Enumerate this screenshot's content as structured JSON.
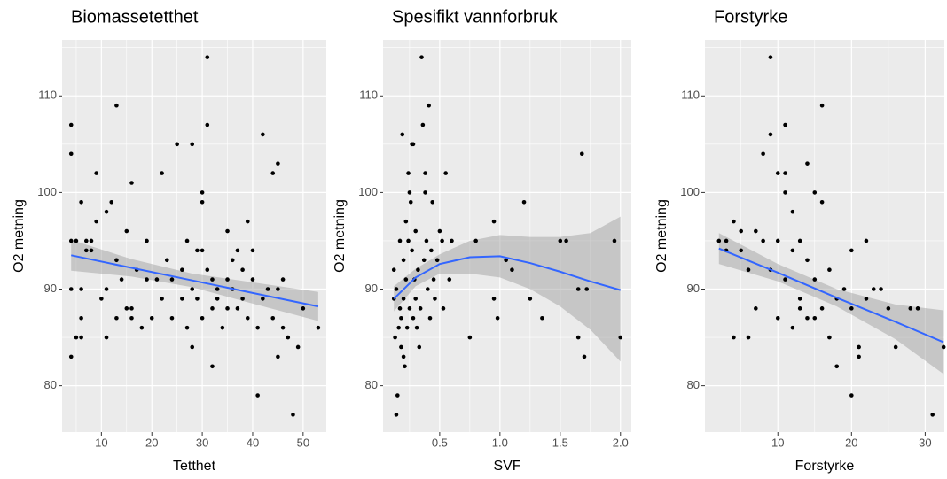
{
  "chart_data": [
    {
      "type": "scatter",
      "title": "Biomassetetthet",
      "xlabel": "Tetthet",
      "ylabel": "O2 metning",
      "color": "#000000",
      "grid": true,
      "background": "#ebebeb",
      "xlim": [
        2.2,
        54.6
      ],
      "ylim": [
        75.2,
        115.8
      ],
      "xticks": [
        10,
        20,
        30,
        40,
        50
      ],
      "yticks": [
        80,
        90,
        100,
        110
      ],
      "x": [
        4,
        4,
        4,
        4,
        4,
        5,
        5,
        6,
        6,
        6,
        6,
        7,
        7,
        8,
        8,
        9,
        9,
        10,
        11,
        11,
        11,
        12,
        13,
        13,
        13,
        14,
        15,
        15,
        16,
        16,
        16,
        17,
        18,
        19,
        19,
        20,
        21,
        22,
        22,
        23,
        24,
        24,
        25,
        26,
        26,
        27,
        27,
        28,
        28,
        28,
        29,
        29,
        30,
        30,
        30,
        30,
        31,
        31,
        31,
        32,
        32,
        32,
        33,
        33,
        34,
        35,
        35,
        35,
        36,
        36,
        37,
        37,
        38,
        38,
        39,
        39,
        40,
        40,
        41,
        41,
        42,
        42,
        43,
        44,
        44,
        45,
        45,
        45,
        46,
        46,
        47,
        48,
        49,
        50,
        53
      ],
      "values": [
        107,
        104,
        95,
        90,
        83,
        85,
        95,
        99,
        87,
        85,
        90,
        94,
        95,
        95,
        94,
        102,
        97,
        89,
        98,
        90,
        85,
        99,
        109,
        87,
        93,
        91,
        96,
        88,
        101,
        88,
        87,
        92,
        86,
        91,
        95,
        87,
        91,
        102,
        89,
        93,
        91,
        87,
        105,
        92,
        89,
        86,
        95,
        105,
        84,
        90,
        94,
        89,
        100,
        94,
        99,
        87,
        107,
        114,
        92,
        88,
        91,
        82,
        89,
        90,
        86,
        96,
        91,
        88,
        93,
        90,
        94,
        88,
        89,
        92,
        97,
        87,
        94,
        91,
        86,
        79,
        106,
        89,
        90,
        102,
        87,
        103,
        83,
        90,
        86,
        91,
        85,
        77,
        84,
        88,
        86
      ],
      "fit": {
        "color": "#3366ff",
        "band_color": "#999999",
        "x": [
          4,
          16,
          28,
          40,
          53
        ],
        "values": [
          93.5,
          92.2,
          90.9,
          89.6,
          88.2
        ],
        "lower": [
          91.9,
          91.3,
          90.2,
          88.5,
          86.7
        ],
        "upper": [
          95.1,
          93.1,
          91.6,
          90.7,
          89.7
        ]
      }
    },
    {
      "type": "scatter",
      "title": "Spesifikt vannforbruk",
      "xlabel": "SVF",
      "ylabel": "O2 metning",
      "color": "#000000",
      "grid": true,
      "background": "#ebebeb",
      "xlim": [
        0.03,
        2.09
      ],
      "ylim": [
        75.2,
        115.8
      ],
      "xticks": [
        0.5,
        {
          "value": 1,
          "label": "1.0"
        },
        1.5,
        {
          "value": 2,
          "label": "2.0"
        }
      ],
      "yticks": [
        80,
        90,
        100,
        110
      ],
      "x": [
        0.12,
        0.12,
        0.13,
        0.14,
        0.14,
        0.15,
        0.16,
        0.17,
        0.17,
        0.18,
        0.18,
        0.19,
        0.2,
        0.2,
        0.2,
        0.21,
        0.22,
        0.22,
        0.23,
        0.24,
        0.24,
        0.25,
        0.25,
        0.26,
        0.27,
        0.27,
        0.28,
        0.28,
        0.29,
        0.3,
        0.3,
        0.31,
        0.32,
        0.33,
        0.34,
        0.35,
        0.36,
        0.37,
        0.38,
        0.38,
        0.39,
        0.4,
        0.41,
        0.42,
        0.43,
        0.44,
        0.45,
        0.46,
        0.48,
        0.5,
        0.52,
        0.53,
        0.55,
        0.58,
        0.6,
        0.75,
        0.8,
        0.95,
        0.95,
        0.98,
        1.05,
        1.1,
        1.2,
        1.25,
        1.35,
        1.5,
        1.55,
        1.65,
        1.65,
        1.68,
        1.7,
        1.72,
        1.95,
        2.0
      ],
      "values": [
        92,
        89,
        85,
        90,
        77,
        79,
        86,
        95,
        88,
        87,
        84,
        106,
        83,
        93,
        89,
        82,
        97,
        91,
        86,
        102,
        95,
        88,
        100,
        99,
        105,
        94,
        87,
        105,
        91,
        96,
        89,
        86,
        92,
        84,
        88,
        114,
        107,
        93,
        102,
        100,
        95,
        90,
        109,
        87,
        94,
        99,
        91,
        89,
        93,
        96,
        95,
        88,
        102,
        91,
        95,
        85,
        95,
        97,
        89,
        87,
        93,
        92,
        99,
        89,
        87,
        95,
        95,
        90,
        85,
        104,
        83,
        90,
        95,
        85
      ],
      "fit": {
        "color": "#3366ff",
        "band_color": "#999999",
        "x": [
          0.12,
          0.3,
          0.5,
          0.75,
          1.0,
          1.25,
          1.5,
          1.75,
          2.0
        ],
        "values": [
          89,
          91.2,
          92.6,
          93.3,
          93.4,
          92.7,
          91.8,
          90.8,
          89.9
        ],
        "lower": [
          87.7,
          90.3,
          91.6,
          91.6,
          91.2,
          90.0,
          88.2,
          85.8,
          82.5
        ],
        "upper": [
          90.3,
          92.1,
          93.6,
          95.0,
          95.6,
          95.4,
          95.4,
          95.8,
          97.5
        ]
      }
    },
    {
      "type": "scatter",
      "title": "Forstyrke",
      "xlabel": "Forstyrke",
      "ylabel": "O2 metning",
      "color": "#000000",
      "grid": true,
      "background": "#ebebeb",
      "xlim": [
        0.1,
        32.6
      ],
      "ylim": [
        75.2,
        115.8
      ],
      "xticks": [
        10,
        20,
        30
      ],
      "yticks": [
        80,
        90,
        100,
        110
      ],
      "x": [
        2,
        3,
        3,
        4,
        4,
        5,
        5,
        6,
        6,
        7,
        7,
        8,
        8,
        9,
        9,
        9,
        10,
        10,
        10,
        11,
        11,
        11,
        11,
        12,
        12,
        12,
        13,
        13,
        13,
        14,
        14,
        14,
        15,
        15,
        15,
        16,
        16,
        16,
        17,
        17,
        18,
        18,
        19,
        20,
        20,
        20,
        21,
        21,
        22,
        22,
        23,
        24,
        25,
        26,
        28,
        29,
        31,
        32.5
      ],
      "values": [
        95,
        95,
        94,
        97,
        85,
        96,
        94,
        92,
        85,
        88,
        96,
        104,
        95,
        114,
        106,
        92,
        102,
        95,
        87,
        102,
        100,
        107,
        91,
        98,
        86,
        94,
        95,
        88,
        89,
        103,
        87,
        93,
        100,
        91,
        87,
        109,
        99,
        88,
        92,
        85,
        82,
        89,
        90,
        94,
        88,
        79,
        84,
        83,
        95,
        89,
        90,
        90,
        88,
        84,
        88,
        88,
        77,
        84
      ],
      "fit": {
        "color": "#3366ff",
        "band_color": "#999999",
        "x": [
          2,
          10,
          18,
          26,
          32.5
        ],
        "values": [
          94.2,
          91.7,
          89.1,
          86.6,
          84.5
        ],
        "lower": [
          92.6,
          90.8,
          88.2,
          84.8,
          81.2
        ],
        "upper": [
          95.8,
          92.6,
          90.0,
          88.4,
          87.8
        ]
      }
    }
  ]
}
